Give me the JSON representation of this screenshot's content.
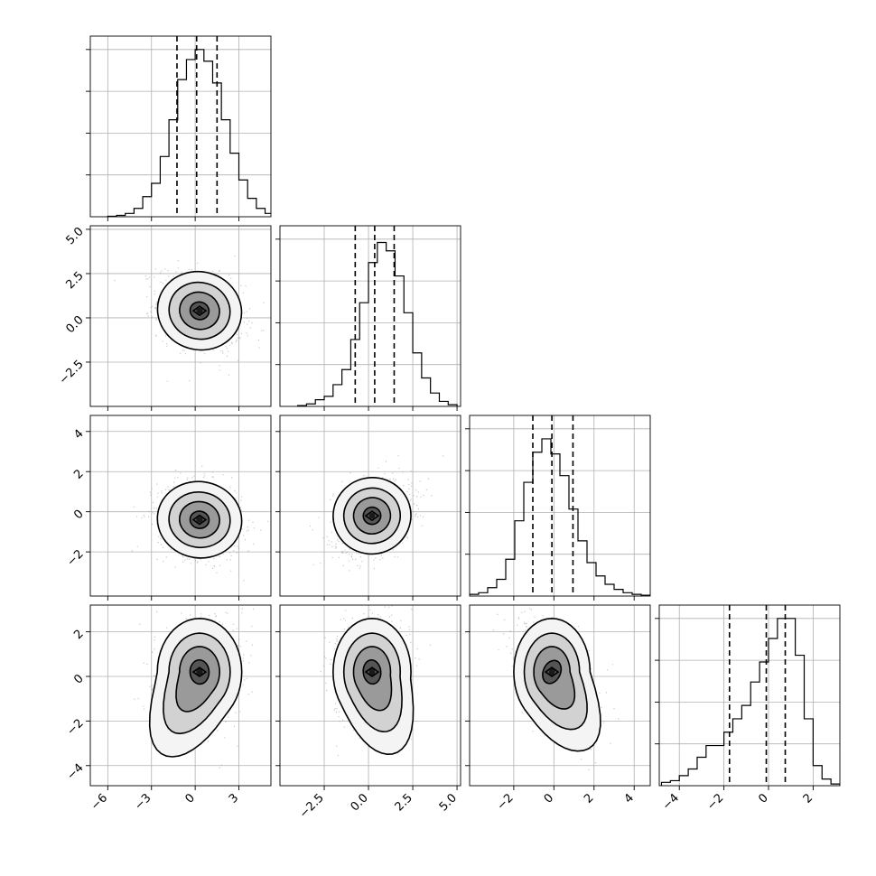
{
  "chart_data": {
    "type": "corner",
    "grid": true,
    "parameters": [
      {
        "range": [
          -7.2,
          5.2
        ],
        "ticks": [
          -6,
          -3,
          0,
          3
        ],
        "tick_labels": [
          "−6",
          "−3",
          "0",
          "3"
        ],
        "hist_bin_width": 0.6,
        "hist_counts": [
          0.003,
          0.008,
          0.02,
          0.05,
          0.12,
          0.2,
          0.36,
          0.58,
          0.82,
          0.94,
          1.0,
          0.93,
          0.8,
          0.58,
          0.38,
          0.22,
          0.11,
          0.05,
          0.02,
          0.01
        ],
        "hist_start": -6.0,
        "quantiles": [
          -1.25,
          0.1,
          1.5
        ],
        "center": 0.35,
        "sd": 1.45
      },
      {
        "range": [
          -5.0,
          5.2
        ],
        "ticks": [
          -2.5,
          0.0,
          2.5,
          5.0
        ],
        "tick_labels": [
          "−2.5",
          "0.0",
          "2.5",
          "5.0"
        ],
        "hist_bin_width": 0.5,
        "hist_counts": [
          0.005,
          0.015,
          0.04,
          0.06,
          0.13,
          0.22,
          0.4,
          0.62,
          0.86,
          0.98,
          0.93,
          0.78,
          0.56,
          0.32,
          0.17,
          0.08,
          0.03,
          0.01
        ],
        "hist_start": -4.0,
        "quantiles": [
          -0.75,
          0.35,
          1.45
        ],
        "center": 0.4,
        "sd": 1.1
      },
      {
        "range": [
          -4.2,
          4.8
        ],
        "ticks": [
          -2,
          0,
          2,
          4
        ],
        "tick_labels": [
          "−2",
          "0",
          "2",
          "4"
        ],
        "hist_bin_width": 0.45,
        "hist_counts": [
          0.01,
          0.02,
          0.05,
          0.1,
          0.22,
          0.45,
          0.68,
          0.86,
          0.94,
          0.85,
          0.72,
          0.52,
          0.33,
          0.2,
          0.12,
          0.07,
          0.04,
          0.02,
          0.01,
          0.005
        ],
        "hist_start": -4.2,
        "quantiles": [
          -1.05,
          -0.1,
          0.95
        ],
        "center": -0.2,
        "sd": 0.95
      },
      {
        "range": [
          -4.9,
          3.2
        ],
        "ticks": [
          -4,
          -2,
          0,
          2
        ],
        "tick_labels": [
          "−4",
          "−2",
          "0",
          "2"
        ],
        "hist_bin_width": 0.4,
        "hist_counts": [
          0.02,
          0.03,
          0.06,
          0.1,
          0.17,
          0.24,
          0.24,
          0.32,
          0.4,
          0.48,
          0.62,
          0.74,
          0.88,
          1.0,
          1.0,
          0.78,
          0.4,
          0.12,
          0.04,
          0.01
        ],
        "hist_start": -4.8,
        "quantiles": [
          -1.75,
          -0.1,
          0.75
        ],
        "center": 0.1,
        "sd": 1.2
      }
    ],
    "hist_y_ticks": [
      0.25,
      0.5,
      0.75,
      1.0
    ],
    "pairs": [
      {
        "row": 1,
        "col": 0,
        "rho": -0.28,
        "peak": [
          0.3,
          0.4
        ],
        "tail": [
          0.0,
          0.0
        ]
      },
      {
        "row": 2,
        "col": 0,
        "rho": -0.15,
        "peak": [
          0.3,
          -0.4
        ],
        "tail": [
          0.0,
          0.0
        ]
      },
      {
        "row": 2,
        "col": 1,
        "rho": 0.3,
        "peak": [
          0.2,
          -0.2
        ],
        "tail": [
          0.0,
          0.0
        ]
      },
      {
        "row": 3,
        "col": 0,
        "rho": 0.05,
        "peak": [
          0.3,
          0.2
        ],
        "tail": [
          -1.2,
          -1.6
        ]
      },
      {
        "row": 3,
        "col": 1,
        "rho": 0.1,
        "peak": [
          0.2,
          0.2
        ],
        "tail": [
          0.6,
          -1.4
        ]
      },
      {
        "row": 3,
        "col": 2,
        "rho": -0.45,
        "peak": [
          -0.1,
          0.2
        ],
        "tail": [
          0.9,
          -1.4
        ]
      }
    ]
  }
}
